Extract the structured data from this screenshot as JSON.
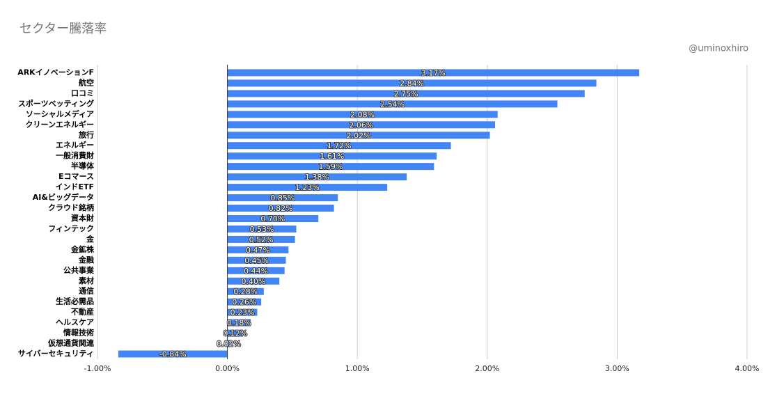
{
  "chart_data": {
    "type": "hbar",
    "title": "セクター騰落率",
    "annotation": "@uminoxhiro",
    "categories": [
      "ARKイノベーションF",
      "航空",
      "口コミ",
      "スポーツベッティング",
      "ソーシャルメディア",
      "クリーンエネルギー",
      "旅行",
      "エネルギー",
      "一般消費財",
      "半導体",
      "Eコマース",
      "インドETF",
      "AI&ビッグデータ",
      "クラウド銘柄",
      "資本財",
      "フィンテック",
      "金",
      "金鉱株",
      "金融",
      "公共事業",
      "素材",
      "通信",
      "生活必需品",
      "不動産",
      "ヘルスケア",
      "情報技術",
      "仮想通貨関連",
      "サイバーセキュリティ"
    ],
    "values": [
      3.17,
      2.84,
      2.75,
      2.54,
      2.08,
      2.06,
      2.02,
      1.72,
      1.61,
      1.59,
      1.38,
      1.23,
      0.85,
      0.82,
      0.7,
      0.53,
      0.52,
      0.47,
      0.45,
      0.44,
      0.4,
      0.28,
      0.26,
      0.23,
      0.18,
      0.12,
      0.02,
      -0.84
    ],
    "value_labels": [
      "3.17%",
      "2.84%",
      "2.75%",
      "2.54%",
      "2.08%",
      "2.06%",
      "2.02%",
      "1.72%",
      "1.61%",
      "1.59%",
      "1.38%",
      "1.23%",
      "0.85%",
      "0.82%",
      "0.70%",
      "0.53%",
      "0.52%",
      "0.47%",
      "0.45%",
      "0.44%",
      "0.40%",
      "0.28%",
      "0.26%",
      "0.23%",
      "0.18%",
      "0.12%",
      "0.02%",
      "-0.84%"
    ],
    "color": "#4285f4",
    "xlim": [
      -1,
      4
    ],
    "xticks": [
      {
        "value": -1,
        "label": "-1.00%"
      },
      {
        "value": 0,
        "label": "0.00%"
      },
      {
        "value": 1,
        "label": "1.00%"
      },
      {
        "value": 2,
        "label": "2.00%"
      },
      {
        "value": 3,
        "label": "3.00%"
      },
      {
        "value": 4,
        "label": "4.00%"
      }
    ],
    "grid": true
  }
}
